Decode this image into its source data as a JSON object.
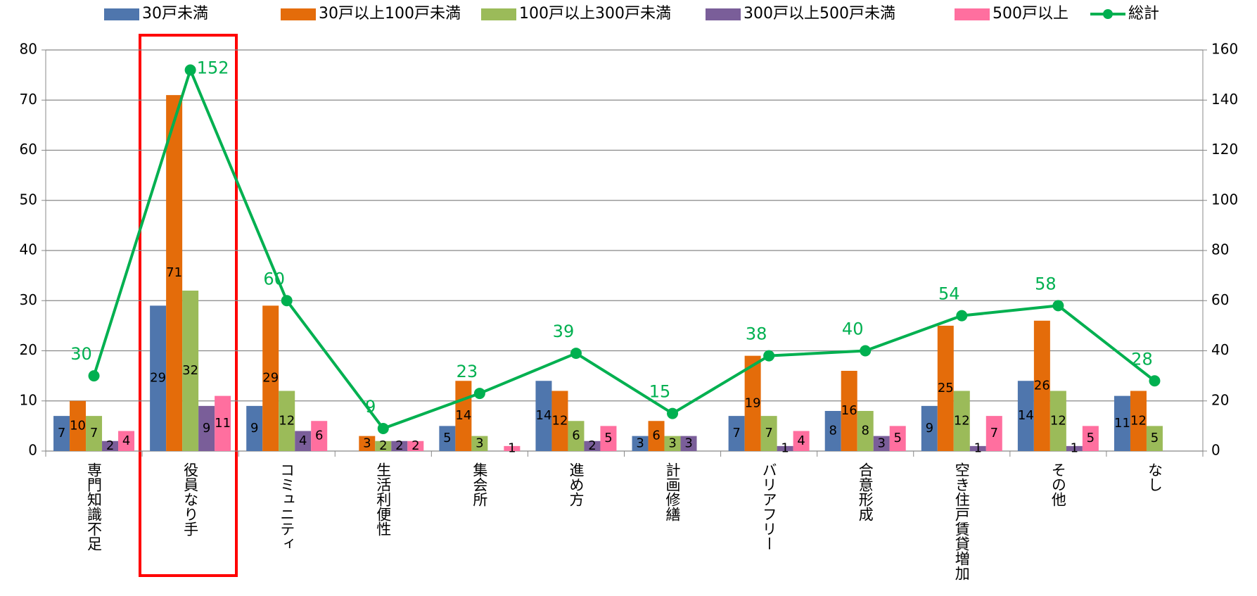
{
  "chart_data": {
    "type": "bar",
    "categories": [
      "専門知識不足",
      "役員なり手",
      "コミュニティ",
      "生活利便性",
      "集会所",
      "進め方",
      "計画修繕",
      "バリアフリー",
      "合意形成",
      "空き住戸賃貸増加",
      "その他",
      "なし"
    ],
    "series": [
      {
        "name": "30戸未満",
        "color": "#4f76ad",
        "values": [
          7,
          29,
          9,
          null,
          5,
          14,
          3,
          7,
          8,
          9,
          14,
          11
        ]
      },
      {
        "name": "30戸以上100戸未満",
        "color": "#e46c0a",
        "values": [
          10,
          71,
          29,
          3,
          14,
          12,
          6,
          19,
          16,
          25,
          26,
          12
        ]
      },
      {
        "name": "100戸以上300戸未満",
        "color": "#9bbb59",
        "values": [
          7,
          32,
          12,
          2,
          3,
          6,
          3,
          7,
          8,
          12,
          12,
          5
        ]
      },
      {
        "name": "300戸以上500戸未満",
        "color": "#7a5e99",
        "values": [
          2,
          9,
          4,
          2,
          null,
          2,
          3,
          1,
          3,
          1,
          1,
          null
        ]
      },
      {
        "name": "500戸以上",
        "color": "#ff6f9f",
        "values": [
          4,
          11,
          6,
          2,
          1,
          5,
          null,
          4,
          5,
          7,
          5,
          null
        ]
      },
      {
        "name": "総計",
        "color": "#00b050",
        "type": "line",
        "axis": "y2",
        "values": [
          30,
          152,
          60,
          9,
          23,
          39,
          15,
          38,
          40,
          54,
          58,
          28
        ]
      }
    ],
    "ylim": [
      0,
      80
    ],
    "yticks": [
      0,
      10,
      20,
      30,
      40,
      50,
      60,
      70,
      80
    ],
    "y2lim": [
      0,
      160
    ],
    "y2ticks": [
      0,
      20,
      40,
      60,
      80,
      100,
      120,
      140,
      160
    ],
    "grid": true,
    "legend": "top"
  }
}
